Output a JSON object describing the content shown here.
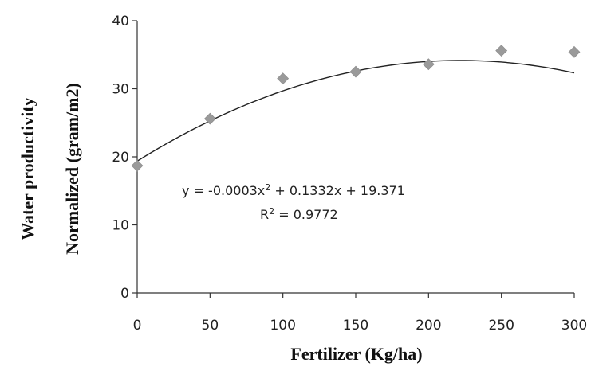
{
  "chart_data": {
    "type": "scatter",
    "title": "",
    "xlabel": "Fertilizer (Kg/ha)",
    "ylabel_lines": [
      "Water productivity",
      "Normalized (gram/m2)"
    ],
    "xlim": [
      0,
      300
    ],
    "ylim": [
      0,
      40
    ],
    "x_ticks": [
      0,
      50,
      100,
      150,
      200,
      250,
      300
    ],
    "y_ticks": [
      0,
      10,
      20,
      30,
      40
    ],
    "grid": false,
    "legend": "none",
    "marker_color": "#9a9a9a",
    "trendline_color": "#222222",
    "series": [
      {
        "x": [
          0,
          50,
          100,
          150,
          200,
          250,
          300
        ],
        "y": [
          18.7,
          25.6,
          31.5,
          32.5,
          33.6,
          35.6,
          35.4
        ]
      }
    ],
    "trendline": {
      "type": "polynomial",
      "coefficients": [
        -0.0003,
        0.1332,
        19.371
      ],
      "equation_parts": [
        "y = -0.0003x",
        "2",
        " + 0.1332x + 19.371"
      ],
      "r2_parts": [
        "R",
        "2",
        " = 0.9772"
      ]
    }
  }
}
